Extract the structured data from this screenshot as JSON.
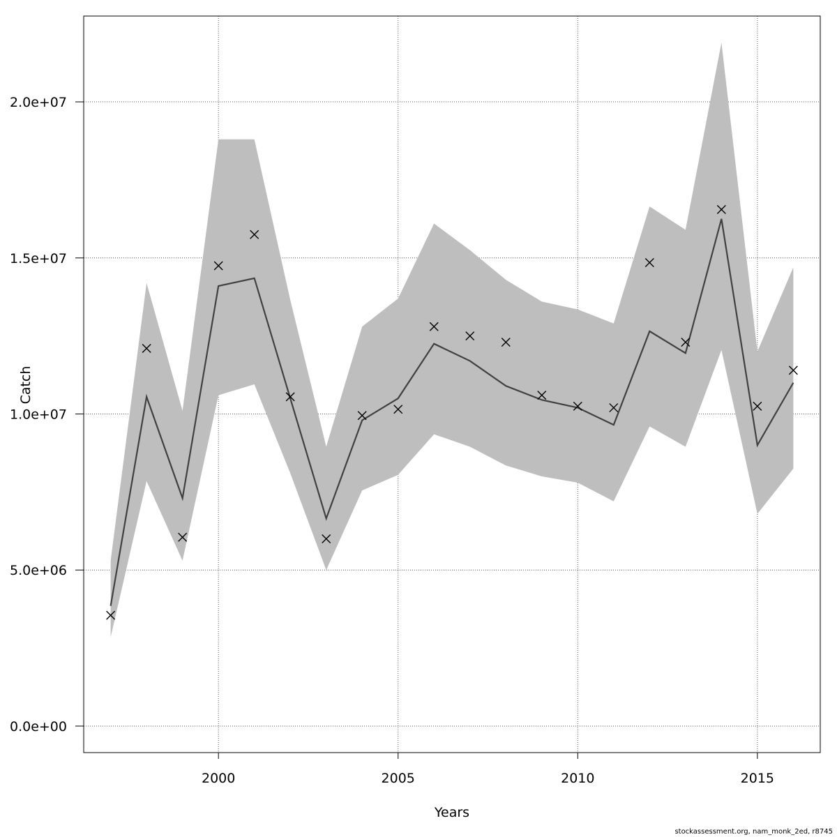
{
  "chart_data": {
    "type": "line",
    "xlabel": "Years",
    "ylabel": "Catch",
    "xlim": [
      1996.25,
      2016.75
    ],
    "ylim": [
      -850000,
      22750000
    ],
    "x_ticks": [
      2000,
      2005,
      2010,
      2015
    ],
    "x_tick_labels": [
      "2000",
      "2005",
      "2010",
      "2015"
    ],
    "y_ticks": [
      0,
      5000000,
      10000000,
      15000000,
      20000000
    ],
    "y_tick_labels": [
      "0.0e+00",
      "5.0e+06",
      "1.0e+07",
      "1.5e+07",
      "2.0e+07"
    ],
    "grid": true,
    "x": [
      1997,
      1998,
      1999,
      2000,
      2001,
      2002,
      2003,
      2004,
      2005,
      2006,
      2007,
      2008,
      2009,
      2010,
      2011,
      2012,
      2013,
      2014,
      2015,
      2016
    ],
    "series": [
      {
        "kind": "band",
        "lower": [
          2850000,
          7850000,
          5300000,
          10600000,
          10950000,
          8100000,
          5000000,
          7550000,
          8050000,
          9350000,
          8950000,
          8350000,
          8000000,
          7800000,
          7200000,
          9600000,
          8950000,
          12050000,
          6800000,
          8250000
        ],
        "upper": [
          5300000,
          14200000,
          10100000,
          18800000,
          18800000,
          13650000,
          8950000,
          12800000,
          13700000,
          16100000,
          15250000,
          14300000,
          13600000,
          13350000,
          12900000,
          16650000,
          15900000,
          21900000,
          12000000,
          14700000
        ],
        "color": "#bebebe"
      },
      {
        "kind": "line",
        "values": [
          3850000,
          10550000,
          7300000,
          14100000,
          14350000,
          10500000,
          6650000,
          9800000,
          10500000,
          12250000,
          11700000,
          10900000,
          10450000,
          10200000,
          9650000,
          12650000,
          11950000,
          16250000,
          9000000,
          11000000
        ],
        "color": "#404040"
      },
      {
        "kind": "points",
        "marker": "x",
        "values": [
          3550000,
          12100000,
          6050000,
          14750000,
          15750000,
          10550000,
          6000000,
          9950000,
          10150000,
          12800000,
          12500000,
          12300000,
          10600000,
          10250000,
          10200000,
          14850000,
          12300000,
          16550000,
          10250000,
          11400000
        ],
        "color": "#000000"
      }
    ]
  },
  "footer": "stockassessment.org, nam_monk_2ed, r8745"
}
